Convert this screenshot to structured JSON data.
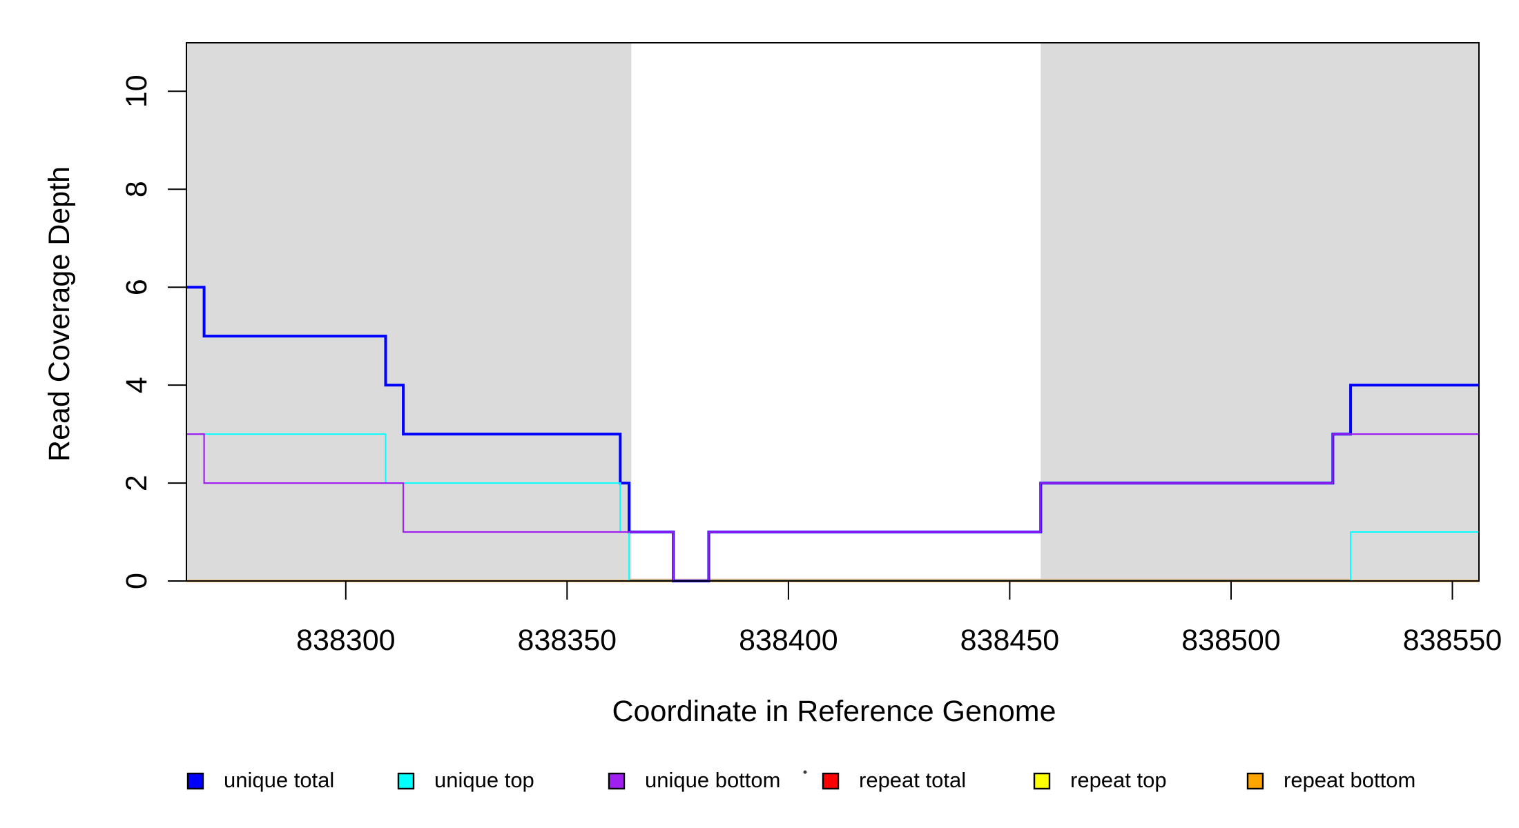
{
  "figure": {
    "background": "#ffffff",
    "plot_border_color": "#000000",
    "shade_color": "#dbdbdb"
  },
  "chart_data": {
    "type": "line",
    "subtype": "step-coverage",
    "title": "",
    "xlabel": "Coordinate in Reference Genome",
    "ylabel": "Read Coverage Depth",
    "xlim": [
      838264,
      838556
    ],
    "ylim": [
      0,
      10.99
    ],
    "x_ticks": [
      "838300",
      "838350",
      "838400",
      "838450",
      "838500",
      "838550"
    ],
    "x_tick_values": [
      838300,
      838350,
      838400,
      838450,
      838500,
      838550
    ],
    "y_ticks": [
      "0",
      "2",
      "4",
      "6",
      "8",
      "10"
    ],
    "y_tick_values": [
      0,
      2,
      4,
      6,
      8,
      10
    ],
    "grid": false,
    "legend_position": "bottom",
    "shaded_regions": [
      {
        "from": 838264,
        "to": 838364.5
      },
      {
        "from": 838457,
        "to": 838556
      }
    ],
    "series": [
      {
        "name": "unique total",
        "color": "#0000ff",
        "line_width": 4,
        "points": [
          [
            838264,
            6
          ],
          [
            838268,
            6
          ],
          [
            838268,
            5
          ],
          [
            838309,
            5
          ],
          [
            838309,
            4
          ],
          [
            838313,
            4
          ],
          [
            838313,
            3
          ],
          [
            838362,
            3
          ],
          [
            838362,
            2
          ],
          [
            838364,
            2
          ],
          [
            838364,
            1
          ],
          [
            838374,
            1
          ],
          [
            838374,
            0
          ],
          [
            838382,
            0
          ],
          [
            838382,
            1
          ],
          [
            838457,
            1
          ],
          [
            838457,
            2
          ],
          [
            838523,
            2
          ],
          [
            838523,
            3
          ],
          [
            838527,
            3
          ],
          [
            838527,
            4
          ],
          [
            838556,
            4
          ]
        ]
      },
      {
        "name": "unique top",
        "color": "#00ffff",
        "line_width": 2,
        "points": [
          [
            838264,
            3
          ],
          [
            838309,
            3
          ],
          [
            838309,
            2
          ],
          [
            838362,
            2
          ],
          [
            838362,
            1
          ],
          [
            838364,
            1
          ],
          [
            838364,
            0
          ],
          [
            838527,
            0
          ],
          [
            838527,
            1
          ],
          [
            838556,
            1
          ]
        ]
      },
      {
        "name": "unique bottom",
        "color": "#a020f0",
        "line_width": 2.2,
        "points": [
          [
            838264,
            3
          ],
          [
            838268,
            3
          ],
          [
            838268,
            2
          ],
          [
            838313,
            2
          ],
          [
            838313,
            1
          ],
          [
            838374,
            1
          ],
          [
            838374,
            0
          ],
          [
            838382,
            0
          ],
          [
            838382,
            1
          ],
          [
            838457,
            1
          ],
          [
            838457,
            2
          ],
          [
            838523,
            2
          ],
          [
            838523,
            3
          ],
          [
            838556,
            3
          ]
        ]
      },
      {
        "name": "repeat total",
        "color": "#ff0000",
        "line_width": 3,
        "points": [
          [
            838264,
            0
          ],
          [
            838556,
            0
          ]
        ]
      },
      {
        "name": "repeat top",
        "color": "#ffff00",
        "line_width": 2.5,
        "points": [
          [
            838264,
            0
          ],
          [
            838556,
            0
          ]
        ]
      },
      {
        "name": "repeat bottom",
        "color": "#ffa500",
        "line_width": 2.8,
        "points": [
          [
            838264,
            0
          ],
          [
            838556,
            0
          ]
        ]
      }
    ],
    "zero_line_blend": {
      "from": 838364,
      "to": 838527,
      "olive": "#7c8a47",
      "pink": "#f2c9bd"
    }
  },
  "legend": {
    "items": [
      {
        "label": "unique total",
        "color": "#0000ff"
      },
      {
        "label": "unique top",
        "color": "#00ffff"
      },
      {
        "label": "unique bottom",
        "color": "#a020f0"
      },
      {
        "label": "repeat total",
        "color": "#ff0000"
      },
      {
        "label": "repeat top",
        "color": "#ffff00"
      },
      {
        "label": "repeat bottom",
        "color": "#ffa500"
      }
    ]
  }
}
